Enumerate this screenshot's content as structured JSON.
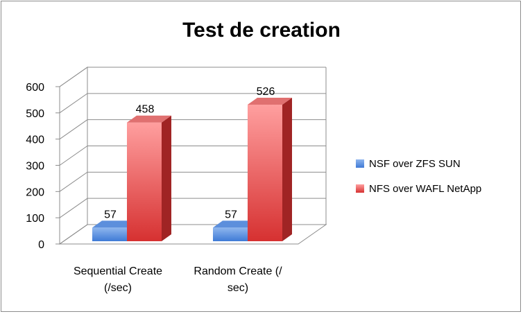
{
  "chart_data": {
    "type": "bar",
    "title": "Test de creation",
    "categories": [
      [
        "Sequential Create",
        "(/sec)"
      ],
      [
        "Random Create (/",
        "sec)"
      ]
    ],
    "series": [
      {
        "name": "NSF over ZFS SUN",
        "values": [
          57,
          57
        ],
        "color": "#4f81bd"
      },
      {
        "name": "NFS over WAFL NetApp",
        "values": [
          458,
          526
        ],
        "color": "#d83a3a"
      }
    ],
    "ylim": [
      0,
      600
    ],
    "yticks": [
      0,
      100,
      200,
      300,
      400,
      500,
      600
    ],
    "grid": true,
    "legend": "right",
    "data_labels": true
  }
}
